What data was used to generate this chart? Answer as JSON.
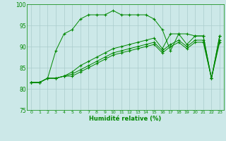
{
  "xlabel": "Humidité relative (%)",
  "background_color": "#cce8e8",
  "grid_color": "#aacccc",
  "line_color": "#008800",
  "xlim": [
    -0.5,
    23.5
  ],
  "ylim": [
    75,
    100
  ],
  "yticks": [
    75,
    80,
    85,
    90,
    95,
    100
  ],
  "xticks": [
    0,
    1,
    2,
    3,
    4,
    5,
    6,
    7,
    8,
    9,
    10,
    11,
    12,
    13,
    14,
    15,
    16,
    17,
    18,
    19,
    20,
    21,
    22,
    23
  ],
  "lines": [
    {
      "x": [
        0,
        1,
        2,
        3,
        4,
        5,
        6,
        7,
        8,
        9,
        10,
        11,
        12,
        13,
        14,
        15,
        16,
        17,
        18,
        19,
        20,
        21,
        22,
        23
      ],
      "y": [
        81.5,
        81.5,
        82.5,
        89.0,
        93.0,
        94.0,
        96.5,
        97.5,
        97.5,
        97.5,
        98.5,
        97.5,
        97.5,
        97.5,
        97.5,
        96.5,
        94.0,
        89.0,
        93.0,
        93.0,
        92.5,
        92.5,
        82.5,
        92.5
      ]
    },
    {
      "x": [
        0,
        1,
        2,
        3,
        4,
        5,
        6,
        7,
        8,
        9,
        10,
        11,
        12,
        13,
        14,
        15,
        16,
        17,
        18,
        19,
        20,
        21,
        22,
        23
      ],
      "y": [
        81.5,
        81.5,
        82.5,
        82.5,
        83.0,
        84.0,
        85.5,
        86.5,
        87.5,
        88.5,
        89.5,
        90.0,
        90.5,
        91.0,
        91.5,
        92.0,
        89.5,
        93.0,
        93.0,
        90.5,
        92.5,
        92.5,
        82.5,
        92.5
      ]
    },
    {
      "x": [
        0,
        1,
        2,
        3,
        4,
        5,
        6,
        7,
        8,
        9,
        10,
        11,
        12,
        13,
        14,
        15,
        16,
        17,
        18,
        19,
        20,
        21,
        22,
        23
      ],
      "y": [
        81.5,
        81.5,
        82.5,
        82.5,
        83.0,
        83.5,
        84.5,
        85.5,
        86.5,
        87.5,
        88.5,
        89.0,
        89.5,
        90.0,
        90.5,
        91.0,
        89.0,
        90.5,
        91.5,
        90.0,
        91.5,
        91.5,
        82.5,
        91.5
      ]
    },
    {
      "x": [
        0,
        1,
        2,
        3,
        4,
        5,
        6,
        7,
        8,
        9,
        10,
        11,
        12,
        13,
        14,
        15,
        16,
        17,
        18,
        19,
        20,
        21,
        22,
        23
      ],
      "y": [
        81.5,
        81.5,
        82.5,
        82.5,
        83.0,
        83.0,
        84.0,
        85.0,
        86.0,
        87.0,
        88.0,
        88.5,
        89.0,
        89.5,
        90.0,
        90.5,
        88.5,
        90.0,
        91.0,
        89.5,
        91.0,
        91.0,
        82.5,
        91.0
      ]
    }
  ]
}
